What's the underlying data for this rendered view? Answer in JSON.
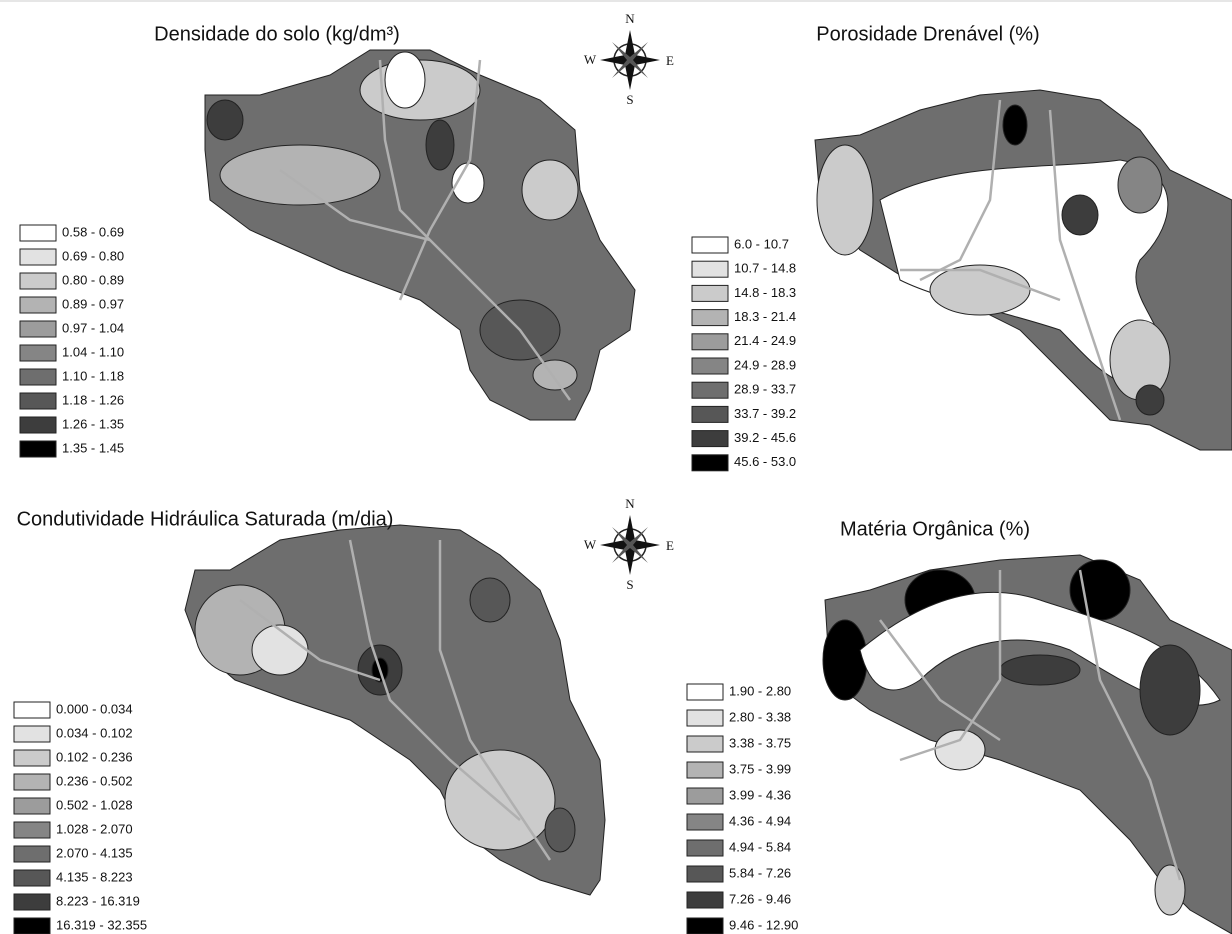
{
  "panels": [
    {
      "title": "Densidade do solo (kg/dm³)",
      "legend": [
        {
          "label": "0.58 - 0.69",
          "color": "#ffffff"
        },
        {
          "label": "0.69 - 0.80",
          "color": "#e2e2e2"
        },
        {
          "label": "0.80 - 0.89",
          "color": "#cbcbcb"
        },
        {
          "label": "0.89 - 0.97",
          "color": "#b3b3b3"
        },
        {
          "label": "0.97 - 1.04",
          "color": "#9c9c9c"
        },
        {
          "label": "1.04 - 1.10",
          "color": "#858585"
        },
        {
          "label": "1.10 - 1.18",
          "color": "#6e6e6e"
        },
        {
          "label": "1.18 - 1.26",
          "color": "#575757"
        },
        {
          "label": "1.26 - 1.35",
          "color": "#3d3d3d"
        },
        {
          "label": "1.35 - 1.45",
          "color": "#000000"
        }
      ]
    },
    {
      "title": "Porosidade Drenável (%)",
      "legend": [
        {
          "label": "6.0 - 10.7",
          "color": "#ffffff"
        },
        {
          "label": "10.7 - 14.8",
          "color": "#e2e2e2"
        },
        {
          "label": "14.8 - 18.3",
          "color": "#cbcbcb"
        },
        {
          "label": "18.3 - 21.4",
          "color": "#b3b3b3"
        },
        {
          "label": "21.4 - 24.9",
          "color": "#9c9c9c"
        },
        {
          "label": "24.9 - 28.9",
          "color": "#858585"
        },
        {
          "label": "28.9 - 33.7",
          "color": "#6e6e6e"
        },
        {
          "label": "33.7 - 39.2",
          "color": "#575757"
        },
        {
          "label": "39.2 - 45.6",
          "color": "#3d3d3d"
        },
        {
          "label": "45.6 - 53.0",
          "color": "#000000"
        }
      ]
    },
    {
      "title": "Condutividade Hidráulica Saturada (m/dia)",
      "legend": [
        {
          "label": "0.000 - 0.034",
          "color": "#ffffff"
        },
        {
          "label": "0.034 - 0.102",
          "color": "#e2e2e2"
        },
        {
          "label": "0.102 - 0.236",
          "color": "#cbcbcb"
        },
        {
          "label": "0.236 - 0.502",
          "color": "#b3b3b3"
        },
        {
          "label": "0.502 - 1.028",
          "color": "#9c9c9c"
        },
        {
          "label": "1.028 - 2.070",
          "color": "#858585"
        },
        {
          "label": "2.070 - 4.135",
          "color": "#6e6e6e"
        },
        {
          "label": "4.135 - 8.223",
          "color": "#575757"
        },
        {
          "label": "8.223 - 16.319",
          "color": "#3d3d3d"
        },
        {
          "label": "16.319 - 32.355",
          "color": "#000000"
        }
      ]
    },
    {
      "title": "Matéria Orgânica (%)",
      "legend": [
        {
          "label": "1.90 - 2.80",
          "color": "#ffffff"
        },
        {
          "label": "2.80 - 3.38",
          "color": "#e2e2e2"
        },
        {
          "label": "3.38 - 3.75",
          "color": "#cbcbcb"
        },
        {
          "label": "3.75 - 3.99",
          "color": "#b3b3b3"
        },
        {
          "label": "3.99 - 4.36",
          "color": "#9c9c9c"
        },
        {
          "label": "4.36 - 4.94",
          "color": "#858585"
        },
        {
          "label": "4.94 - 5.84",
          "color": "#6e6e6e"
        },
        {
          "label": "5.84 - 7.26",
          "color": "#575757"
        },
        {
          "label": "7.26 - 9.46",
          "color": "#3d3d3d"
        },
        {
          "label": "9.46 - 12.90",
          "color": "#000000"
        }
      ]
    }
  ],
  "compass": [
    {
      "n": "N",
      "s": "S",
      "e": "E",
      "w": "W"
    },
    {
      "n": "N",
      "s": "S",
      "e": "E",
      "w": "W"
    }
  ]
}
